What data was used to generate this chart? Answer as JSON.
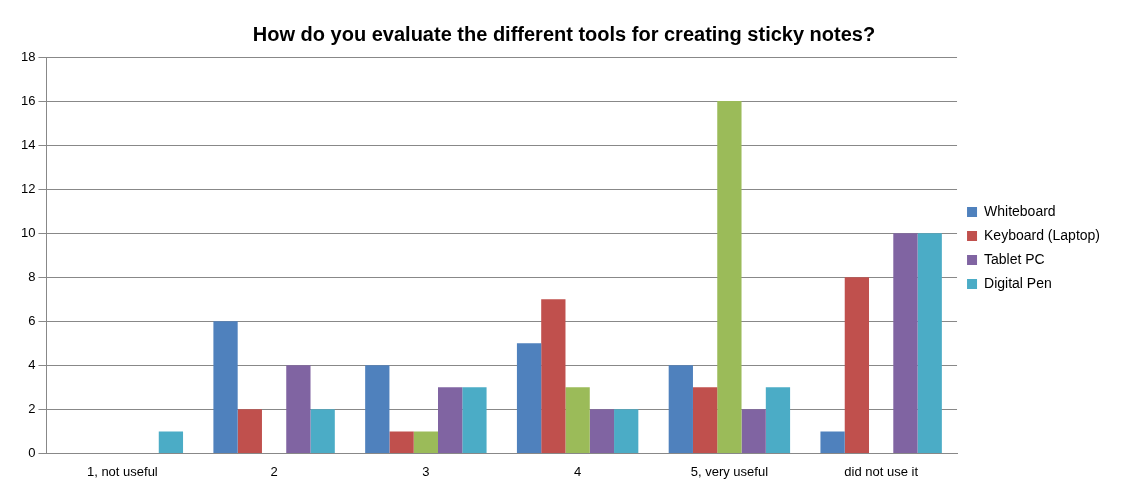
{
  "chart_data": {
    "type": "bar",
    "title": "How do you evaluate the different tools for creating sticky notes?",
    "categories": [
      "1, not useful",
      "2",
      "3",
      "4",
      "5, very useful",
      "did not use it"
    ],
    "series": [
      {
        "name": "Whiteboard",
        "color": "#4f81bd",
        "values": [
          0,
          6,
          4,
          5,
          4,
          1
        ]
      },
      {
        "name": "Keyboard (Laptop)",
        "color": "#c0504d",
        "values": [
          0,
          2,
          1,
          7,
          3,
          8
        ]
      },
      {
        "color": "#9bbb59",
        "values": [
          0,
          0,
          1,
          3,
          16,
          0
        ]
      },
      {
        "name": "Tablet PC",
        "color": "#8064a2",
        "values": [
          0,
          4,
          3,
          2,
          2,
          10
        ]
      },
      {
        "name": "Digital Pen",
        "color": "#4bacc6",
        "values": [
          1,
          2,
          3,
          2,
          3,
          10
        ]
      }
    ],
    "ylim": [
      0,
      18
    ],
    "yticks": [
      0,
      2,
      4,
      6,
      8,
      10,
      12,
      14,
      16,
      18
    ],
    "grid": "y",
    "legend": "right"
  }
}
